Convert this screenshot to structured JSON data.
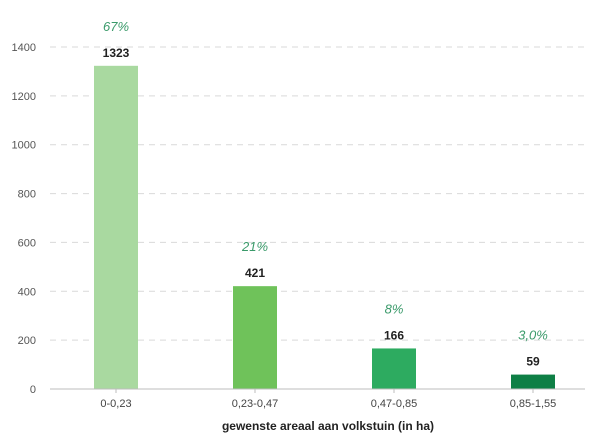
{
  "chart_data": {
    "type": "bar",
    "categories": [
      "0-0,23",
      "0,23-0,47",
      "0,47-0,85",
      "0,85-1,55"
    ],
    "values": [
      1323,
      421,
      166,
      59
    ],
    "value_labels": [
      "1323",
      "421",
      "166",
      "59"
    ],
    "percent_labels": [
      "67%",
      "21%",
      "8%",
      "3,0%"
    ],
    "bar_colors": [
      "#a9d9a0",
      "#6fc25a",
      "#2dab60",
      "#0e7f45"
    ],
    "xlabel": "gewenste areaal aan volkstuin (in ha)",
    "ylabel": "",
    "ylim": [
      0,
      1400
    ],
    "yticks": [
      0,
      200,
      400,
      600,
      800,
      1000,
      1200,
      1400
    ],
    "grid": true
  }
}
